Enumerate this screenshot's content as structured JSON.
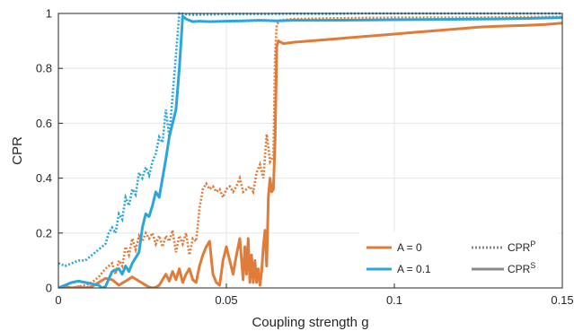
{
  "chart_data": {
    "type": "line",
    "xlabel": "Coupling strength g",
    "ylabel": "CPR",
    "xlim": [
      0,
      0.15
    ],
    "ylim": [
      0,
      1
    ],
    "xticks": [
      0,
      0.05,
      0.1,
      0.15
    ],
    "xtick_labels": [
      "0",
      "0.05",
      "0.1",
      "0.15"
    ],
    "yticks": [
      0,
      0.2,
      0.4,
      0.6,
      0.8,
      1
    ],
    "ytick_labels": [
      "0",
      "0.2",
      "0.4",
      "0.6",
      "0.8",
      "1"
    ],
    "grid": true,
    "legend_placement": "bottom-right",
    "legend": {
      "color_entries": [
        {
          "label": "A = 0",
          "color": "#E07B39"
        },
        {
          "label": "A = 0.1",
          "color": "#2AA6DC"
        }
      ],
      "style_entries": [
        {
          "label": "CPR",
          "sup": "P",
          "style": "dotted"
        },
        {
          "label": "CPR",
          "sup": "S",
          "style": "solid"
        }
      ]
    },
    "series": [
      {
        "A": "0",
        "measure": "CPR^S",
        "style": "solid",
        "color": "#E07B39",
        "points": [
          [
            0,
            0
          ],
          [
            0.002,
            0.005
          ],
          [
            0.004,
            0
          ],
          [
            0.006,
            0.004
          ],
          [
            0.008,
            0
          ],
          [
            0.01,
            0.005
          ],
          [
            0.012,
            0.02
          ],
          [
            0.014,
            0.035
          ],
          [
            0.016,
            0.03
          ],
          [
            0.018,
            0.01
          ],
          [
            0.02,
            0.025
          ],
          [
            0.022,
            0.04
          ],
          [
            0.024,
            0.025
          ],
          [
            0.026,
            0.01
          ],
          [
            0.027,
            0.003
          ],
          [
            0.028,
            0
          ],
          [
            0.029,
            0.002
          ],
          [
            0.03,
            0.01
          ],
          [
            0.031,
            0.03
          ],
          [
            0.032,
            0.05
          ],
          [
            0.033,
            0.025
          ],
          [
            0.034,
            0.06
          ],
          [
            0.035,
            0.03
          ],
          [
            0.036,
            0.07
          ],
          [
            0.037,
            0.02
          ],
          [
            0.038,
            0.05
          ],
          [
            0.039,
            0.07
          ],
          [
            0.04,
            0.03
          ],
          [
            0.041,
            0.02
          ],
          [
            0.042,
            0.08
          ],
          [
            0.043,
            0.12
          ],
          [
            0.044,
            0.15
          ],
          [
            0.045,
            0.17
          ],
          [
            0.046,
            0.05
          ],
          [
            0.047,
            0.02
          ],
          [
            0.048,
            0.01
          ],
          [
            0.049,
            0.1
          ],
          [
            0.05,
            0.15
          ],
          [
            0.051,
            0.1
          ],
          [
            0.052,
            0.05
          ],
          [
            0.053,
            0.12
          ],
          [
            0.054,
            0.18
          ],
          [
            0.055,
            0.03
          ],
          [
            0.0555,
            0.15
          ],
          [
            0.056,
            0.05
          ],
          [
            0.0565,
            0.18
          ],
          [
            0.057,
            0.02
          ],
          [
            0.0575,
            0.12
          ],
          [
            0.058,
            0.02
          ],
          [
            0.0585,
            0.1
          ],
          [
            0.059,
            0.02
          ],
          [
            0.0595,
            0.07
          ],
          [
            0.06,
            0.01
          ],
          [
            0.0605,
            0.06
          ],
          [
            0.061,
            0.15
          ],
          [
            0.0615,
            0.21
          ],
          [
            0.062,
            0.08
          ],
          [
            0.0625,
            0.33
          ],
          [
            0.063,
            0.4
          ],
          [
            0.0635,
            0.35
          ],
          [
            0.064,
            0.36
          ],
          [
            0.0645,
            0.54
          ],
          [
            0.065,
            0.88
          ],
          [
            0.0655,
            0.9
          ],
          [
            0.067,
            0.89
          ],
          [
            0.07,
            0.895
          ],
          [
            0.075,
            0.9
          ],
          [
            0.08,
            0.905
          ],
          [
            0.085,
            0.91
          ],
          [
            0.09,
            0.915
          ],
          [
            0.095,
            0.92
          ],
          [
            0.1,
            0.925
          ],
          [
            0.105,
            0.93
          ],
          [
            0.11,
            0.935
          ],
          [
            0.115,
            0.94
          ],
          [
            0.12,
            0.945
          ],
          [
            0.125,
            0.95
          ],
          [
            0.13,
            0.953
          ],
          [
            0.135,
            0.955
          ],
          [
            0.14,
            0.957
          ],
          [
            0.145,
            0.96
          ],
          [
            0.15,
            0.965
          ]
        ]
      },
      {
        "A": "0",
        "measure": "CPR^P",
        "style": "dotted",
        "color": "#E07B39",
        "points": [
          [
            0,
            0
          ],
          [
            0.004,
            0
          ],
          [
            0.008,
            0.01
          ],
          [
            0.01,
            0.02
          ],
          [
            0.012,
            0.04
          ],
          [
            0.014,
            0.07
          ],
          [
            0.016,
            0.09
          ],
          [
            0.017,
            0.05
          ],
          [
            0.018,
            0.1
          ],
          [
            0.019,
            0.08
          ],
          [
            0.02,
            0.15
          ],
          [
            0.021,
            0.12
          ],
          [
            0.022,
            0.18
          ],
          [
            0.023,
            0.14
          ],
          [
            0.024,
            0.19
          ],
          [
            0.025,
            0.17
          ],
          [
            0.026,
            0.2
          ],
          [
            0.027,
            0.18
          ],
          [
            0.028,
            0.2
          ],
          [
            0.029,
            0.16
          ],
          [
            0.03,
            0.19
          ],
          [
            0.031,
            0.15
          ],
          [
            0.032,
            0.19
          ],
          [
            0.033,
            0.17
          ],
          [
            0.034,
            0.21
          ],
          [
            0.035,
            0.13
          ],
          [
            0.036,
            0.19
          ],
          [
            0.037,
            0.16
          ],
          [
            0.038,
            0.2
          ],
          [
            0.039,
            0.12
          ],
          [
            0.04,
            0.18
          ],
          [
            0.041,
            0.17
          ],
          [
            0.042,
            0.29
          ],
          [
            0.043,
            0.36
          ],
          [
            0.044,
            0.38
          ],
          [
            0.045,
            0.36
          ],
          [
            0.046,
            0.37
          ],
          [
            0.047,
            0.35
          ],
          [
            0.048,
            0.36
          ],
          [
            0.049,
            0.33
          ],
          [
            0.05,
            0.36
          ],
          [
            0.051,
            0.37
          ],
          [
            0.052,
            0.35
          ],
          [
            0.053,
            0.37
          ],
          [
            0.054,
            0.4
          ],
          [
            0.055,
            0.35
          ],
          [
            0.056,
            0.36
          ],
          [
            0.057,
            0.37
          ],
          [
            0.058,
            0.35
          ],
          [
            0.059,
            0.42
          ],
          [
            0.06,
            0.45
          ],
          [
            0.061,
            0.4
          ],
          [
            0.062,
            0.56
          ],
          [
            0.063,
            0.46
          ],
          [
            0.064,
            0.48
          ],
          [
            0.0645,
            0.85
          ],
          [
            0.065,
            0.96
          ],
          [
            0.066,
            0.975
          ],
          [
            0.07,
            0.98
          ],
          [
            0.08,
            0.982
          ],
          [
            0.09,
            0.984
          ],
          [
            0.1,
            0.985
          ],
          [
            0.11,
            0.985
          ],
          [
            0.12,
            0.985
          ],
          [
            0.13,
            0.986
          ],
          [
            0.14,
            0.987
          ],
          [
            0.15,
            0.988
          ]
        ]
      },
      {
        "A": "0.1",
        "measure": "CPR^S",
        "style": "solid",
        "color": "#2AA6DC",
        "points": [
          [
            0,
            0
          ],
          [
            0.002,
            0.01
          ],
          [
            0.004,
            0.02
          ],
          [
            0.006,
            0.025
          ],
          [
            0.008,
            0.02
          ],
          [
            0.01,
            0.015
          ],
          [
            0.012,
            0.01
          ],
          [
            0.013,
            0
          ],
          [
            0.014,
            0.005
          ],
          [
            0.016,
            0.06
          ],
          [
            0.018,
            0.07
          ],
          [
            0.019,
            0.05
          ],
          [
            0.02,
            0.08
          ],
          [
            0.021,
            0.06
          ],
          [
            0.022,
            0.09
          ],
          [
            0.023,
            0.11
          ],
          [
            0.024,
            0.13
          ],
          [
            0.025,
            0.22
          ],
          [
            0.026,
            0.27
          ],
          [
            0.027,
            0.26
          ],
          [
            0.028,
            0.3
          ],
          [
            0.029,
            0.35
          ],
          [
            0.03,
            0.33
          ],
          [
            0.031,
            0.4
          ],
          [
            0.032,
            0.47
          ],
          [
            0.033,
            0.55
          ],
          [
            0.034,
            0.6
          ],
          [
            0.035,
            0.65
          ],
          [
            0.036,
            0.8
          ],
          [
            0.037,
            0.99
          ],
          [
            0.038,
            0.98
          ],
          [
            0.04,
            0.97
          ],
          [
            0.042,
            0.972
          ],
          [
            0.045,
            0.97
          ],
          [
            0.05,
            0.972
          ],
          [
            0.055,
            0.973
          ],
          [
            0.06,
            0.975
          ],
          [
            0.065,
            0.973
          ],
          [
            0.07,
            0.975
          ],
          [
            0.08,
            0.975
          ],
          [
            0.09,
            0.976
          ],
          [
            0.1,
            0.977
          ],
          [
            0.11,
            0.978
          ],
          [
            0.12,
            0.979
          ],
          [
            0.13,
            0.98
          ],
          [
            0.14,
            0.982
          ],
          [
            0.15,
            0.985
          ]
        ]
      },
      {
        "A": "0.1",
        "measure": "CPR^P",
        "style": "dotted",
        "color": "#2AA6DC",
        "points": [
          [
            0,
            0.09
          ],
          [
            0.002,
            0.08
          ],
          [
            0.004,
            0.09
          ],
          [
            0.006,
            0.1
          ],
          [
            0.008,
            0.1
          ],
          [
            0.01,
            0.12
          ],
          [
            0.012,
            0.14
          ],
          [
            0.014,
            0.16
          ],
          [
            0.015,
            0.2
          ],
          [
            0.016,
            0.22
          ],
          [
            0.017,
            0.2
          ],
          [
            0.018,
            0.27
          ],
          [
            0.019,
            0.25
          ],
          [
            0.02,
            0.33
          ],
          [
            0.021,
            0.3
          ],
          [
            0.022,
            0.36
          ],
          [
            0.023,
            0.34
          ],
          [
            0.024,
            0.42
          ],
          [
            0.025,
            0.4
          ],
          [
            0.026,
            0.44
          ],
          [
            0.027,
            0.41
          ],
          [
            0.028,
            0.46
          ],
          [
            0.029,
            0.49
          ],
          [
            0.03,
            0.55
          ],
          [
            0.031,
            0.53
          ],
          [
            0.032,
            0.65
          ],
          [
            0.033,
            0.55
          ],
          [
            0.034,
            0.7
          ],
          [
            0.035,
            0.85
          ],
          [
            0.036,
            1.0
          ],
          [
            0.04,
            0.995
          ],
          [
            0.05,
            0.998
          ],
          [
            0.06,
            0.998
          ],
          [
            0.07,
            0.999
          ],
          [
            0.08,
            0.999
          ],
          [
            0.09,
            1.0
          ],
          [
            0.1,
            1.0
          ],
          [
            0.11,
            1.0
          ],
          [
            0.12,
            1.0
          ],
          [
            0.13,
            1.0
          ],
          [
            0.14,
            1.0
          ],
          [
            0.15,
            1.0
          ]
        ]
      }
    ]
  }
}
